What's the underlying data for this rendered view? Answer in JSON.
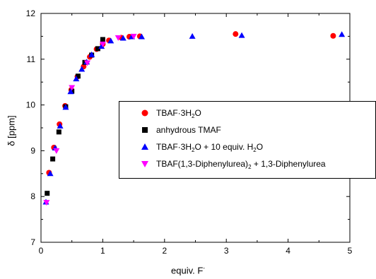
{
  "chart_data": {
    "type": "scatter",
    "xlabel_main": "equiv. F",
    "xlabel_sup": "-",
    "ylabel": "δ [ppm]",
    "xlim": [
      0,
      5
    ],
    "ylim": [
      7,
      12
    ],
    "x_ticks": [
      "0",
      "1",
      "2",
      "3",
      "4",
      "5"
    ],
    "y_ticks": [
      "7",
      "8",
      "9",
      "10",
      "11",
      "12"
    ],
    "grid": false,
    "legend_position": "center-right",
    "series": [
      {
        "name_parts": [
          "TBAF·3H",
          "2",
          "O"
        ],
        "marker": "circle",
        "color": "#ff0000",
        "points": [
          [
            0.13,
            8.52
          ],
          [
            0.21,
            9.07
          ],
          [
            0.3,
            9.58
          ],
          [
            0.39,
            9.98
          ],
          [
            0.49,
            10.33
          ],
          [
            0.59,
            10.62
          ],
          [
            0.69,
            10.84
          ],
          [
            0.79,
            11.05
          ],
          [
            0.9,
            11.22
          ],
          [
            1.0,
            11.33
          ],
          [
            1.1,
            11.41
          ],
          [
            1.3,
            11.47
          ],
          [
            1.43,
            11.49
          ],
          [
            1.6,
            11.5
          ],
          [
            3.15,
            11.55
          ],
          [
            4.73,
            11.51
          ]
        ]
      },
      {
        "name_parts": [
          "anhydrous TMAF"
        ],
        "marker": "square",
        "color": "#000000",
        "points": [
          [
            0.1,
            8.07
          ],
          [
            0.19,
            8.82
          ],
          [
            0.29,
            9.41
          ],
          [
            0.4,
            9.96
          ],
          [
            0.5,
            10.3
          ],
          [
            0.6,
            10.63
          ],
          [
            0.71,
            10.93
          ],
          [
            0.82,
            11.09
          ],
          [
            0.92,
            11.23
          ],
          [
            1.0,
            11.43
          ]
        ]
      },
      {
        "name_parts": [
          "TBAF·3H",
          "2",
          "O + 10 equiv. H",
          "2",
          "O"
        ],
        "marker": "triangle-up",
        "color": "#0000ff",
        "points": [
          [
            0.08,
            7.88
          ],
          [
            0.15,
            8.5
          ],
          [
            0.23,
            9.06
          ],
          [
            0.31,
            9.54
          ],
          [
            0.4,
            9.95
          ],
          [
            0.48,
            10.29
          ],
          [
            0.57,
            10.57
          ],
          [
            0.66,
            10.78
          ],
          [
            0.74,
            10.94
          ],
          [
            0.82,
            11.1
          ],
          [
            0.98,
            11.28
          ],
          [
            1.13,
            11.4
          ],
          [
            1.33,
            11.46
          ],
          [
            1.47,
            11.49
          ],
          [
            1.63,
            11.49
          ],
          [
            2.45,
            11.5
          ],
          [
            3.25,
            11.52
          ],
          [
            4.87,
            11.54
          ]
        ]
      },
      {
        "name_parts": [
          "TBAF(1,3-Diphenylurea)",
          "2",
          " + 1,3-Diphenylurea"
        ],
        "marker": "triangle-down",
        "color": "#ff00ff",
        "points": [
          [
            0.09,
            7.87
          ],
          [
            0.25,
            9.0
          ],
          [
            0.5,
            10.38
          ],
          [
            0.75,
            10.92
          ],
          [
            1.0,
            11.33
          ],
          [
            1.25,
            11.47
          ],
          [
            1.5,
            11.5
          ]
        ]
      }
    ]
  }
}
